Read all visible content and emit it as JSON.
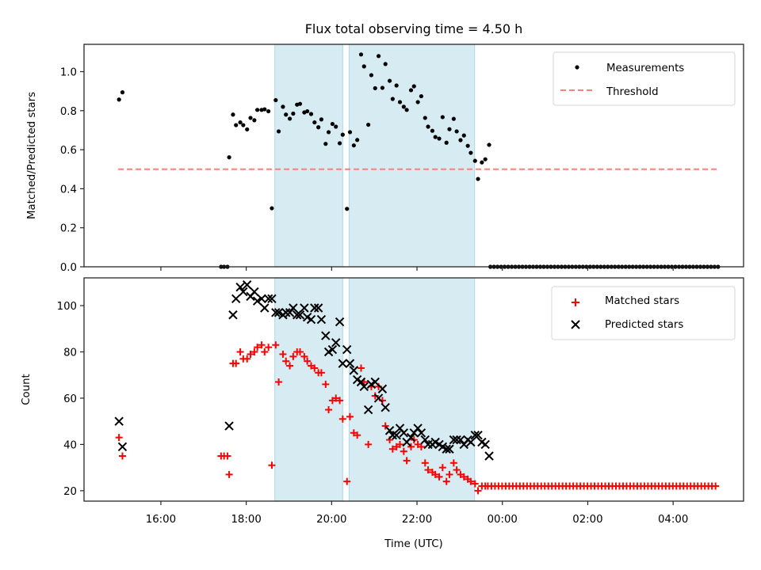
{
  "chart_data": [
    {
      "type": "scatter",
      "title": "Flux total observing time = 4.50 h",
      "xlabel": "",
      "ylabel": "Matched/Predicted stars",
      "ylim": [
        0.0,
        1.14
      ],
      "xlim_hours": [
        14.2,
        29.65
      ],
      "yticks": [
        0.0,
        0.2,
        0.4,
        0.6,
        0.8,
        1.0
      ],
      "ytick_labels": [
        "0.0",
        "0.2",
        "0.4",
        "0.6",
        "0.8",
        "1.0"
      ],
      "xtick_hours": [
        16,
        18,
        20,
        22,
        24,
        26,
        28
      ],
      "xtick_labels": [
        "",
        "",
        "",
        "",
        "",
        "",
        ""
      ],
      "grid": false,
      "legend": {
        "position": "top-right",
        "entries": [
          {
            "label": "Measurements",
            "marker": "dot",
            "color": "#000000"
          },
          {
            "label": "Threshold",
            "marker": "dashed-line",
            "color": "#ff7f7f"
          }
        ]
      },
      "threshold": {
        "value": 0.5,
        "from_hour": 15.0,
        "to_hour": 29.08,
        "color": "#ff7f7f"
      },
      "shaded_spans_hours": [
        [
          18.67,
          20.26
        ],
        [
          20.41,
          23.35
        ]
      ],
      "shade_color": "#add8e6",
      "x_hours": [
        15.02,
        15.1,
        17.41,
        17.48,
        17.56,
        17.6,
        17.69,
        17.76,
        17.86,
        17.93,
        18.02,
        18.1,
        18.19,
        18.26,
        18.36,
        18.43,
        18.52,
        18.6,
        18.69,
        18.76,
        18.86,
        18.93,
        19.02,
        19.1,
        19.19,
        19.26,
        19.36,
        19.43,
        19.52,
        19.6,
        19.69,
        19.76,
        19.86,
        19.93,
        20.02,
        20.1,
        20.19,
        20.26,
        20.36,
        20.43,
        20.52,
        20.6,
        20.69,
        20.76,
        20.86,
        20.93,
        21.02,
        21.1,
        21.19,
        21.26,
        21.36,
        21.43,
        21.52,
        21.6,
        21.69,
        21.76,
        21.86,
        21.93,
        22.02,
        22.1,
        22.19,
        22.26,
        22.36,
        22.43,
        22.52,
        22.6,
        22.69,
        22.76,
        22.86,
        22.93,
        23.02,
        23.1,
        23.19,
        23.26,
        23.36,
        23.43,
        23.52,
        23.6,
        23.69
      ],
      "values": [
        0.857,
        0.894,
        0.0,
        0.0,
        0.0,
        0.561,
        0.78,
        0.726,
        0.74,
        0.726,
        0.704,
        0.763,
        0.751,
        0.804,
        0.804,
        0.807,
        0.797,
        0.3,
        0.854,
        0.694,
        0.82,
        0.78,
        0.759,
        0.785,
        0.831,
        0.835,
        0.791,
        0.797,
        0.783,
        0.74,
        0.715,
        0.755,
        0.63,
        0.69,
        0.732,
        0.718,
        0.633,
        0.677,
        0.297,
        0.69,
        0.622,
        0.65,
        1.088,
        1.027,
        0.728,
        0.982,
        0.915,
        1.08,
        0.917,
        1.039,
        0.953,
        0.86,
        0.929,
        0.844,
        0.82,
        0.804,
        0.905,
        0.925,
        0.844,
        0.874,
        0.763,
        0.718,
        0.697,
        0.665,
        0.657,
        0.767,
        0.636,
        0.705,
        0.758,
        0.694,
        0.649,
        0.673,
        0.62,
        0.584,
        0.543,
        0.45,
        0.535,
        0.551,
        0.625
      ],
      "zero_run": {
        "from_hour": 23.72,
        "to_hour": 29.06,
        "step_minutes": 5,
        "value": 0.0
      }
    },
    {
      "type": "scatter",
      "title": "",
      "xlabel": "Time (UTC)",
      "ylabel": "Count",
      "ylim": [
        15.5,
        112
      ],
      "xlim_hours": [
        14.2,
        29.65
      ],
      "yticks": [
        20,
        40,
        60,
        80,
        100
      ],
      "ytick_labels": [
        "20",
        "40",
        "60",
        "80",
        "100"
      ],
      "xtick_hours": [
        16,
        18,
        20,
        22,
        24,
        26,
        28
      ],
      "xtick_labels": [
        "16:00",
        "18:00",
        "20:00",
        "22:00",
        "00:00",
        "02:00",
        "04:00"
      ],
      "grid": false,
      "legend": {
        "position": "top-right",
        "entries": [
          {
            "label": "Matched stars",
            "marker": "plus",
            "color": "#ff0000"
          },
          {
            "label": "Predicted stars",
            "marker": "x",
            "color": "#000000"
          }
        ]
      },
      "shaded_spans_hours": [
        [
          18.67,
          20.26
        ],
        [
          20.41,
          23.35
        ]
      ],
      "shade_color": "#add8e6",
      "series": [
        {
          "name": "Matched stars",
          "marker": "plus",
          "color": "#ff0000",
          "x_hours": [
            15.02,
            15.1,
            17.41,
            17.48,
            17.56,
            17.6,
            17.69,
            17.76,
            17.86,
            17.93,
            18.02,
            18.1,
            18.19,
            18.26,
            18.36,
            18.43,
            18.52,
            18.6,
            18.69,
            18.76,
            18.86,
            18.93,
            19.02,
            19.1,
            19.19,
            19.26,
            19.36,
            19.43,
            19.52,
            19.6,
            19.69,
            19.76,
            19.86,
            19.93,
            20.02,
            20.1,
            20.19,
            20.26,
            20.36,
            20.43,
            20.52,
            20.6,
            20.69,
            20.76,
            20.86,
            20.93,
            21.02,
            21.1,
            21.19,
            21.26,
            21.36,
            21.43,
            21.52,
            21.6,
            21.69,
            21.76,
            21.86,
            21.93,
            22.02,
            22.1,
            22.19,
            22.26,
            22.36,
            22.43,
            22.52,
            22.6,
            22.69,
            22.76,
            22.86,
            22.93,
            23.02,
            23.1,
            23.19,
            23.26,
            23.36,
            23.43,
            23.52,
            23.6
          ],
          "values": [
            43,
            35,
            35,
            35,
            35,
            27,
            75,
            75,
            80,
            77,
            77,
            79,
            80,
            82,
            83,
            80,
            82,
            31,
            83,
            67,
            79,
            76,
            74,
            78,
            80,
            80,
            78,
            76,
            74,
            73,
            71,
            71,
            66,
            55,
            59,
            60,
            59,
            51,
            24,
            52,
            45,
            44,
            73,
            67,
            40,
            65,
            61,
            65,
            59,
            48,
            42,
            38,
            39,
            40,
            37,
            33,
            39,
            42,
            40,
            39,
            32,
            29,
            28,
            27,
            26,
            30,
            24,
            27,
            32,
            29,
            27,
            26,
            25,
            24,
            23,
            20,
            22,
            22
          ],
          "constant_run": {
            "from_hour": 23.66,
            "to_hour": 29.06,
            "step_minutes": 5,
            "value": 22
          }
        },
        {
          "name": "Predicted stars",
          "marker": "x",
          "color": "#000000",
          "x_hours": [
            15.02,
            15.1,
            17.6,
            17.69,
            17.76,
            17.86,
            17.93,
            18.02,
            18.1,
            18.19,
            18.26,
            18.36,
            18.43,
            18.52,
            18.6,
            18.69,
            18.76,
            18.86,
            18.93,
            19.02,
            19.1,
            19.19,
            19.26,
            19.36,
            19.43,
            19.52,
            19.6,
            19.69,
            19.76,
            19.86,
            19.93,
            20.02,
            20.1,
            20.19,
            20.26,
            20.36,
            20.43,
            20.52,
            20.6,
            20.69,
            20.76,
            20.86,
            20.93,
            21.02,
            21.1,
            21.19,
            21.26,
            21.36,
            21.43,
            21.52,
            21.6,
            21.69,
            21.76,
            21.86,
            21.93,
            22.02,
            22.1,
            22.19,
            22.26,
            22.36,
            22.43,
            22.52,
            22.6,
            22.69,
            22.76,
            22.86,
            22.93,
            23.02,
            23.1,
            23.19,
            23.26,
            23.36,
            23.43,
            23.52,
            23.6,
            23.69
          ],
          "values": [
            50,
            39,
            48,
            96,
            103,
            108,
            106,
            109,
            104,
            106,
            102,
            103,
            99,
            103,
            103,
            97,
            97,
            96,
            97,
            97,
            99,
            96,
            96,
            99,
            95,
            94,
            99,
            99,
            94,
            87,
            80,
            81,
            84,
            93,
            75,
            81,
            75,
            72,
            68,
            67,
            65,
            55,
            66,
            67,
            60,
            64,
            56,
            46,
            44,
            44,
            47,
            45,
            41,
            43,
            45,
            47,
            45,
            42,
            40,
            40,
            41,
            40,
            39,
            38,
            38,
            42,
            42,
            42,
            40,
            42,
            41,
            44,
            44,
            41,
            40,
            35
          ]
        }
      ]
    }
  ]
}
